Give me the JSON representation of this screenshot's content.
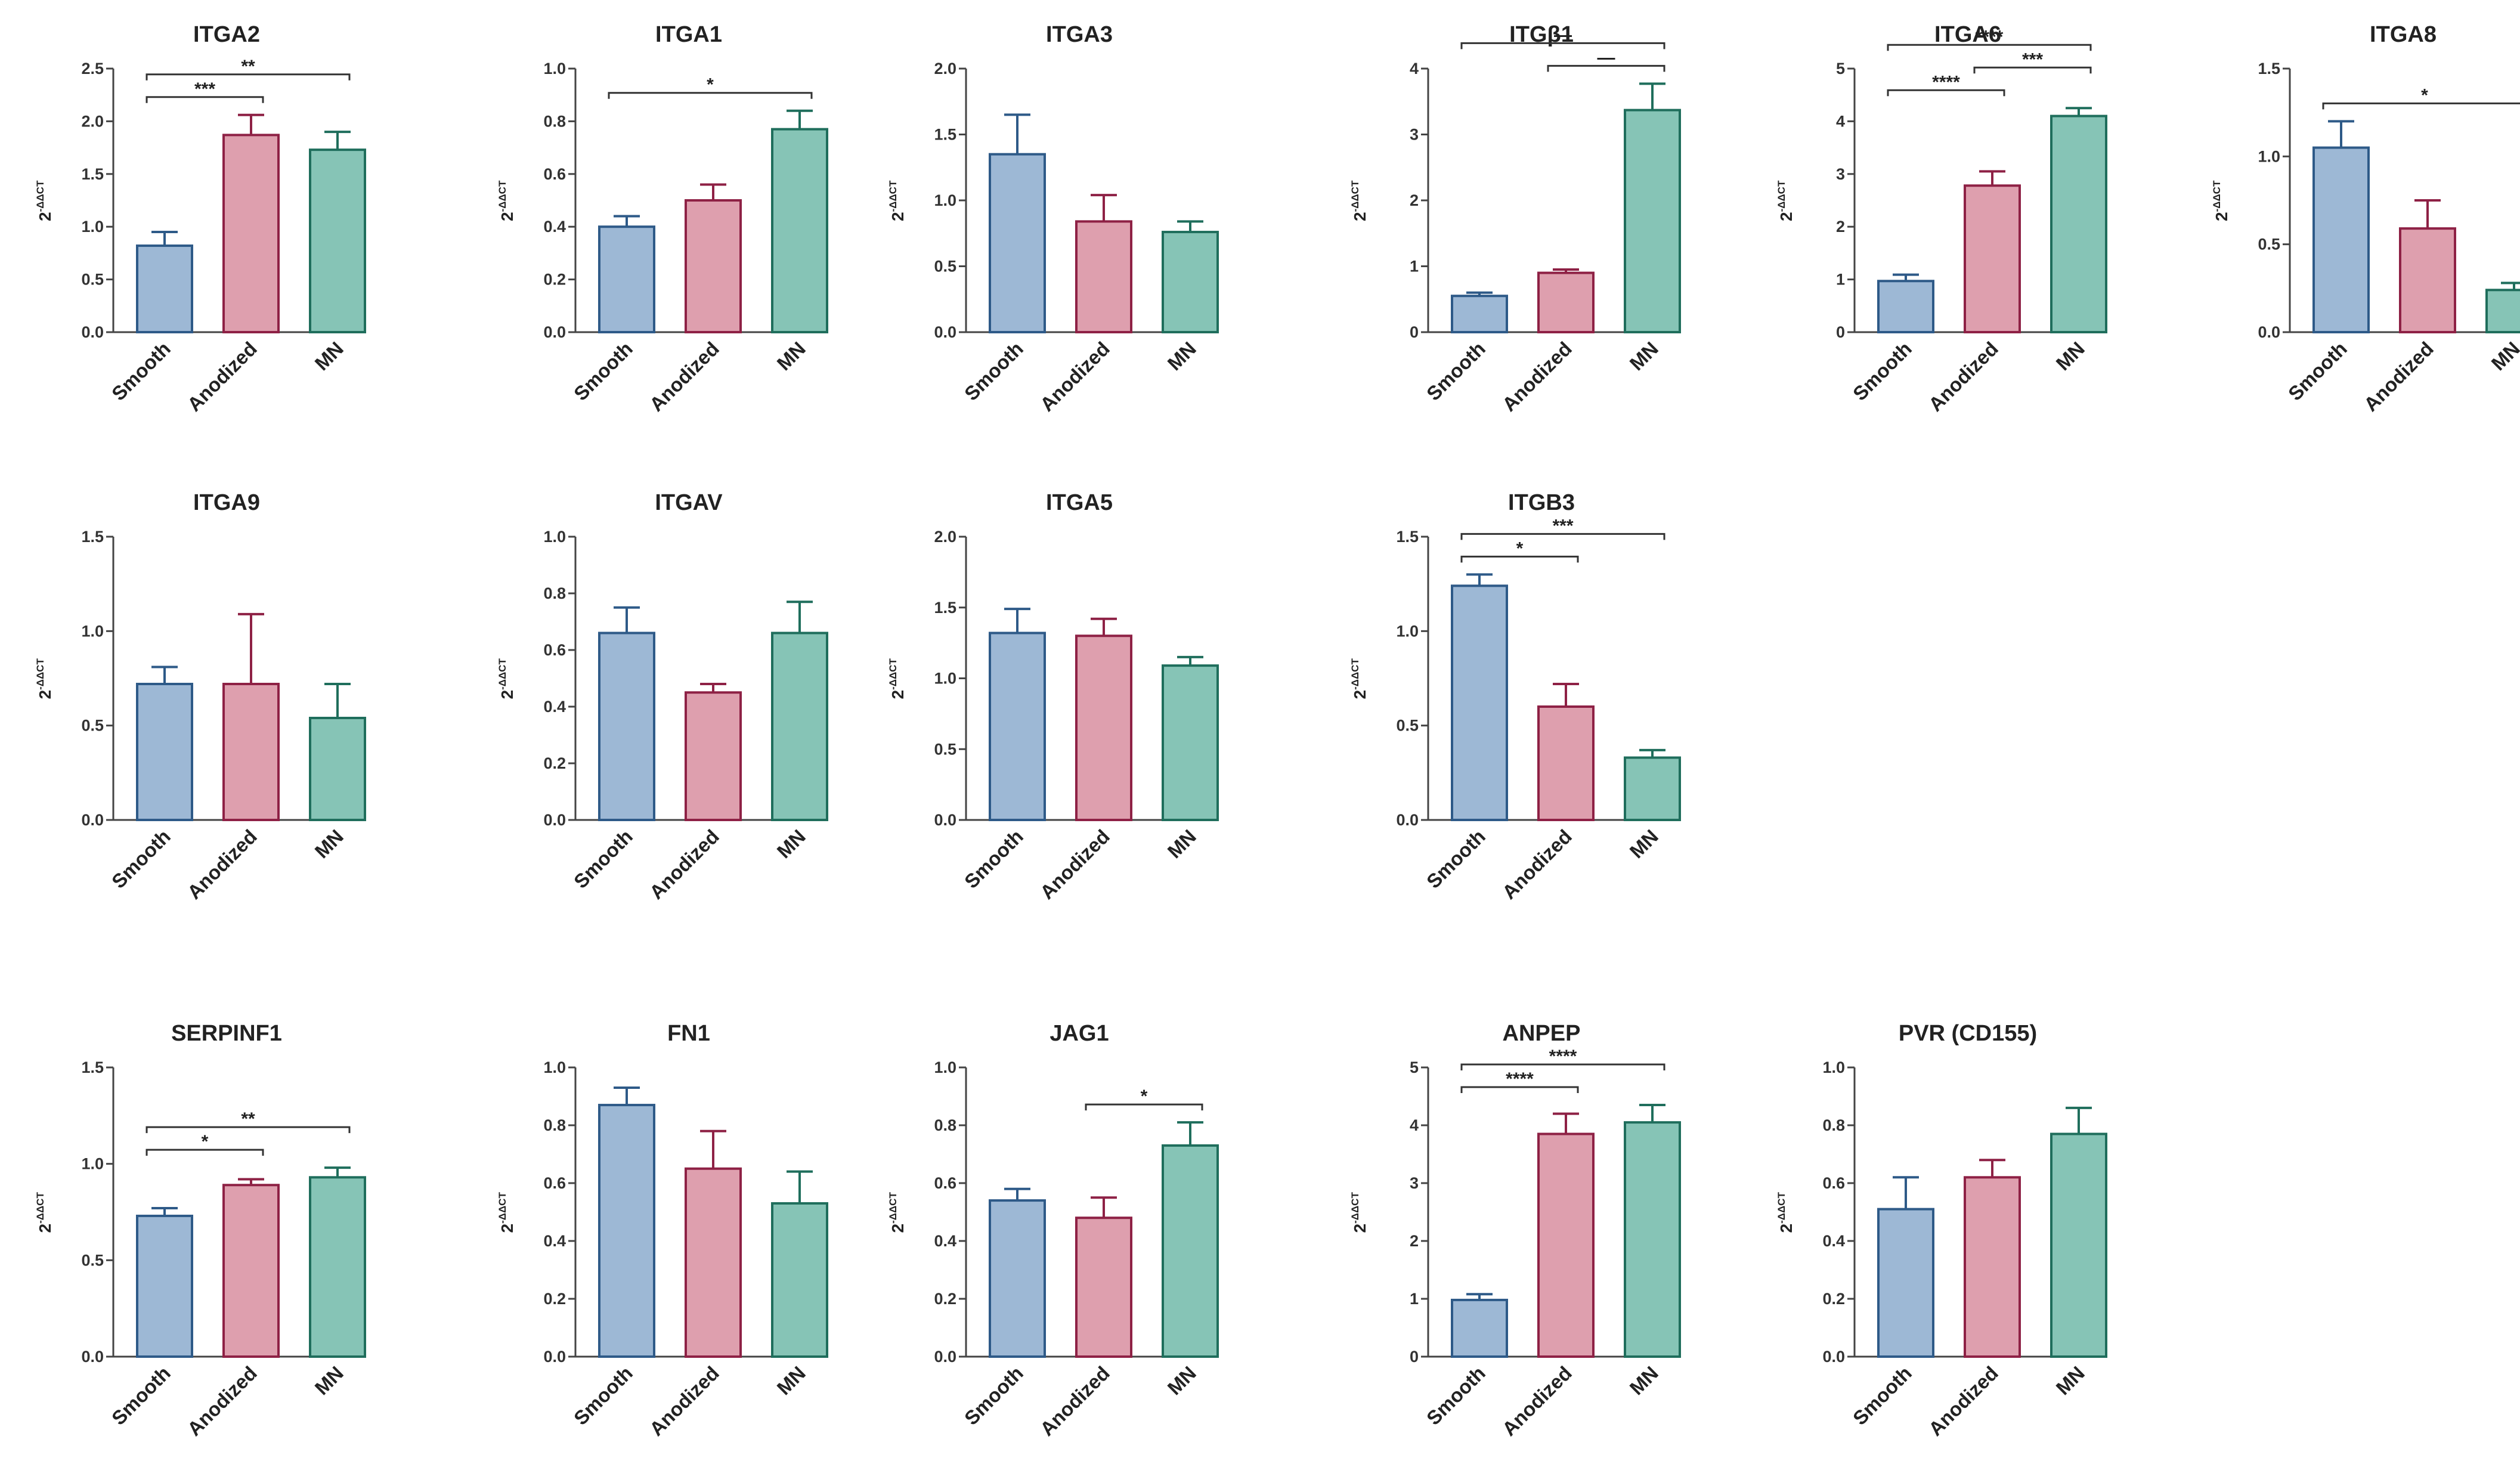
{
  "figure": {
    "background": "#ffffff"
  },
  "chart_data": [
    {
      "type": "bar",
      "title": "ITGA2",
      "ylabel": "2-ΔΔCT",
      "categories": [
        "Smooth",
        "Anodized",
        "MN"
      ],
      "values": [
        0.82,
        1.87,
        1.73
      ],
      "errors": [
        0.13,
        0.19,
        0.17
      ],
      "ylim": [
        0,
        2.5
      ],
      "yticks": [
        "0.0",
        "0.5",
        "1.0",
        "1.5",
        "2.0",
        "2.5"
      ],
      "significance": [
        {
          "from": 0,
          "to": 1,
          "label": "***"
        },
        {
          "from": 0,
          "to": 2,
          "label": "**"
        }
      ]
    },
    {
      "type": "bar",
      "title": "ITGA1",
      "ylabel": "2-ΔΔCT",
      "categories": [
        "Smooth",
        "Anodized",
        "MN"
      ],
      "values": [
        0.4,
        0.5,
        0.77
      ],
      "errors": [
        0.04,
        0.06,
        0.07
      ],
      "ylim": [
        0,
        1.0
      ],
      "yticks": [
        "0.0",
        "0.2",
        "0.4",
        "0.6",
        "0.8",
        "1.0"
      ],
      "significance": [
        {
          "from": 0,
          "to": 2,
          "label": "*"
        }
      ]
    },
    {
      "type": "bar",
      "title": "ITGA3",
      "ylabel": "2-ΔΔCT",
      "categories": [
        "Smooth",
        "Anodized",
        "MN"
      ],
      "values": [
        1.35,
        0.84,
        0.76
      ],
      "errors": [
        0.3,
        0.2,
        0.08
      ],
      "ylim": [
        0,
        2.0
      ],
      "yticks": [
        "0.0",
        "0.5",
        "1.0",
        "1.5",
        "2.0"
      ],
      "significance": []
    },
    {
      "type": "bar",
      "title": "ITGβ1",
      "ylabel": "2-ΔΔCT",
      "categories": [
        "Smooth",
        "Anodized",
        "MN"
      ],
      "values": [
        0.55,
        0.9,
        3.37
      ],
      "errors": [
        0.05,
        0.05,
        0.4
      ],
      "ylim": [
        0,
        4
      ],
      "yticks": [
        "0",
        "1",
        "2",
        "3",
        "4"
      ],
      "significance": [
        {
          "from": 0,
          "to": 2,
          "label": "—"
        },
        {
          "from": 1,
          "to": 2,
          "label": "—"
        }
      ]
    },
    {
      "type": "bar",
      "title": "ITGA6",
      "ylabel": "2-ΔΔCT",
      "categories": [
        "Smooth",
        "Anodized",
        "MN"
      ],
      "values": [
        0.97,
        2.78,
        4.1
      ],
      "errors": [
        0.12,
        0.27,
        0.15
      ],
      "ylim": [
        0,
        5
      ],
      "yticks": [
        "0",
        "1",
        "2",
        "3",
        "4",
        "5"
      ],
      "significance": [
        {
          "from": 0,
          "to": 1,
          "label": "****"
        },
        {
          "from": 1,
          "to": 2,
          "label": "***"
        },
        {
          "from": 0,
          "to": 2,
          "label": "****"
        }
      ]
    },
    {
      "type": "bar",
      "title": "ITGA8",
      "ylabel": "2-ΔΔCT",
      "categories": [
        "Smooth",
        "Anodized",
        "MN"
      ],
      "values": [
        1.05,
        0.59,
        0.24
      ],
      "errors": [
        0.15,
        0.16,
        0.04
      ],
      "ylim": [
        0,
        1.5
      ],
      "yticks": [
        "0.0",
        "0.5",
        "1.0",
        "1.5"
      ],
      "significance": [
        {
          "from": 0,
          "to": 2,
          "label": "*"
        }
      ]
    },
    {
      "type": "bar",
      "title": "ITGA9",
      "ylabel": "2-ΔΔCT",
      "categories": [
        "Smooth",
        "Anodized",
        "MN"
      ],
      "values": [
        0.72,
        0.72,
        0.54
      ],
      "errors": [
        0.09,
        0.37,
        0.18
      ],
      "ylim": [
        0,
        1.5
      ],
      "yticks": [
        "0.0",
        "0.5",
        "1.0",
        "1.5"
      ],
      "significance": []
    },
    {
      "type": "bar",
      "title": "ITGAV",
      "ylabel": "2-ΔΔCT",
      "categories": [
        "Smooth",
        "Anodized",
        "MN"
      ],
      "values": [
        0.66,
        0.45,
        0.66
      ],
      "errors": [
        0.09,
        0.03,
        0.11
      ],
      "ylim": [
        0,
        1.0
      ],
      "yticks": [
        "0.0",
        "0.2",
        "0.4",
        "0.6",
        "0.8",
        "1.0"
      ],
      "significance": []
    },
    {
      "type": "bar",
      "title": "ITGA5",
      "ylabel": "2-ΔΔCT",
      "categories": [
        "Smooth",
        "Anodized",
        "MN"
      ],
      "values": [
        1.32,
        1.3,
        1.09
      ],
      "errors": [
        0.17,
        0.12,
        0.06
      ],
      "ylim": [
        0,
        2.0
      ],
      "yticks": [
        "0.0",
        "0.5",
        "1.0",
        "1.5",
        "2.0"
      ],
      "significance": []
    },
    {
      "type": "bar",
      "title": "ITGB3",
      "ylabel": "2-ΔΔCT",
      "categories": [
        "Smooth",
        "Anodized",
        "MN"
      ],
      "values": [
        1.24,
        0.6,
        0.33
      ],
      "errors": [
        0.06,
        0.12,
        0.04
      ],
      "ylim": [
        0,
        1.5
      ],
      "yticks": [
        "0.0",
        "0.5",
        "1.0",
        "1.5"
      ],
      "significance": [
        {
          "from": 0,
          "to": 1,
          "label": "*"
        },
        {
          "from": 0,
          "to": 2,
          "label": "***"
        }
      ]
    },
    {
      "type": "bar",
      "title": "SERPINF1",
      "ylabel": "2-ΔΔCT",
      "categories": [
        "Smooth",
        "Anodized",
        "MN"
      ],
      "values": [
        0.73,
        0.89,
        0.93
      ],
      "errors": [
        0.04,
        0.03,
        0.05
      ],
      "ylim": [
        0,
        1.5
      ],
      "yticks": [
        "0.0",
        "0.5",
        "1.0",
        "1.5"
      ],
      "significance": [
        {
          "from": 0,
          "to": 1,
          "label": "*"
        },
        {
          "from": 0,
          "to": 2,
          "label": "**"
        }
      ]
    },
    {
      "type": "bar",
      "title": "FN1",
      "ylabel": "2-ΔΔCT",
      "categories": [
        "Smooth",
        "Anodized",
        "MN"
      ],
      "values": [
        0.87,
        0.65,
        0.53
      ],
      "errors": [
        0.06,
        0.13,
        0.11
      ],
      "ylim": [
        0,
        1.0
      ],
      "yticks": [
        "0.0",
        "0.2",
        "0.4",
        "0.6",
        "0.8",
        "1.0"
      ],
      "significance": []
    },
    {
      "type": "bar",
      "title": "JAG1",
      "ylabel": "2-ΔΔCT",
      "categories": [
        "Smooth",
        "Anodized",
        "MN"
      ],
      "values": [
        0.54,
        0.48,
        0.73
      ],
      "errors": [
        0.04,
        0.07,
        0.08
      ],
      "ylim": [
        0,
        1.0
      ],
      "yticks": [
        "0.0",
        "0.2",
        "0.4",
        "0.6",
        "0.8",
        "1.0"
      ],
      "significance": [
        {
          "from": 1,
          "to": 2,
          "label": "*"
        }
      ]
    },
    {
      "type": "bar",
      "title": "ANPEP",
      "ylabel": "2-ΔΔCT",
      "categories": [
        "Smooth",
        "Anodized",
        "MN"
      ],
      "values": [
        0.98,
        3.85,
        4.05
      ],
      "errors": [
        0.1,
        0.35,
        0.3
      ],
      "ylim": [
        0,
        5
      ],
      "yticks": [
        "0",
        "1",
        "2",
        "3",
        "4",
        "5"
      ],
      "significance": [
        {
          "from": 0,
          "to": 1,
          "label": "****"
        },
        {
          "from": 0,
          "to": 2,
          "label": "****"
        }
      ]
    },
    {
      "type": "bar",
      "title": "PVR (CD155)",
      "ylabel": "2-ΔΔCT",
      "categories": [
        "Smooth",
        "Anodized",
        "MN"
      ],
      "values": [
        0.51,
        0.62,
        0.77
      ],
      "errors": [
        0.11,
        0.06,
        0.09
      ],
      "ylim": [
        0,
        1.0
      ],
      "yticks": [
        "0.0",
        "0.2",
        "0.4",
        "0.6",
        "0.8",
        "1.0"
      ],
      "significance": []
    }
  ],
  "series_colors": {
    "Smooth": {
      "fill": "#9db8d5",
      "stroke": "#2e5a88"
    },
    "Anodized": {
      "fill": "#de9fae",
      "stroke": "#8e2145"
    },
    "MN": {
      "fill": "#86c4b6",
      "stroke": "#1f6e5c"
    }
  },
  "ylabel_parts": {
    "base": "2",
    "sup": "-ΔΔCT"
  }
}
